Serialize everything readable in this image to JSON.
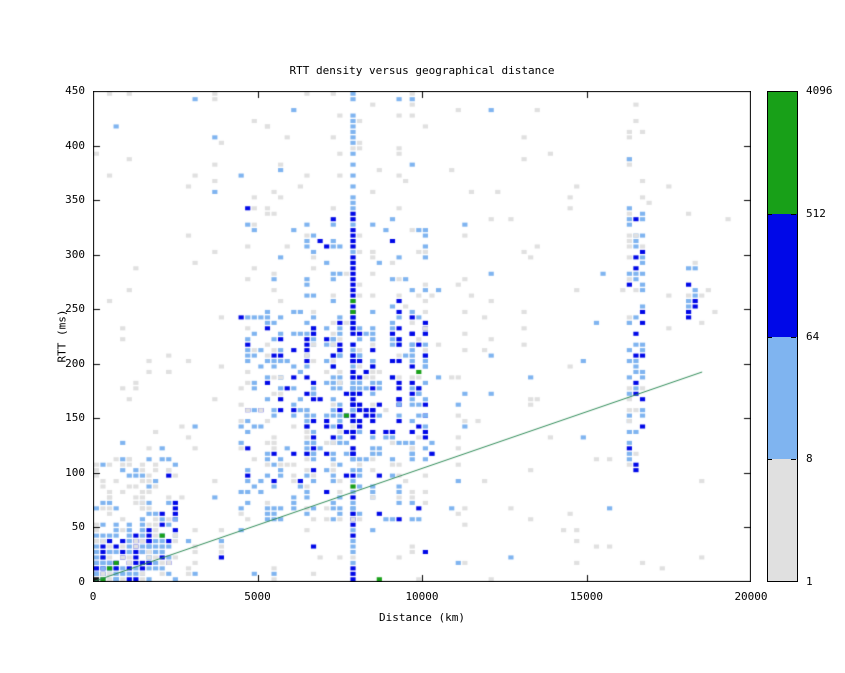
{
  "chart_data": {
    "type": "heatmap",
    "title": "RTT density versus geographical distance",
    "xlabel": "Distance (km)",
    "ylabel": "RTT (ms)",
    "xlim": [
      0,
      20000
    ],
    "ylim": [
      0,
      450
    ],
    "xticks": [
      0,
      5000,
      10000,
      15000,
      20000
    ],
    "yticks": [
      0,
      50,
      100,
      150,
      200,
      250,
      300,
      350,
      400,
      450
    ],
    "xtick_labels": [
      "0",
      "5000",
      "10000",
      "15000",
      "20000"
    ],
    "ytick_labels": [
      "0",
      "50",
      "100",
      "150",
      "200",
      "250",
      "300",
      "350",
      "400",
      "450"
    ],
    "grid": false,
    "legend_position": "right-colorbar",
    "bin_size": {
      "km": 200,
      "ms": 5
    },
    "color_scale": {
      "scale": "log",
      "thresholds": [
        1,
        8,
        64,
        512,
        4096
      ],
      "labels": [
        "1",
        "8",
        "64",
        "512",
        "4096"
      ],
      "levels": [
        {
          "name": "gray",
          "min": 1,
          "max": 8,
          "color": "#e0e0e0"
        },
        {
          "name": "lightblue",
          "min": 8,
          "max": 64,
          "color": "#7fb4f0"
        },
        {
          "name": "blue",
          "min": 64,
          "max": 512,
          "color": "#0008e8"
        },
        {
          "name": "green",
          "min": 512,
          "max": 4096,
          "color": "#18a018"
        }
      ]
    },
    "reference_line": {
      "from": [
        0,
        0
      ],
      "to": [
        18500,
        192
      ],
      "color": "#2e8b57"
    },
    "axis_color": "#000000",
    "background": "#ffffff",
    "seed": 7,
    "origin_cell": {
      "km": 100,
      "ms": 2,
      "color": "#151515"
    },
    "green_cells": [
      [
        300,
        3
      ],
      [
        500,
        12
      ],
      [
        700,
        16
      ],
      [
        2100,
        41
      ],
      [
        7700,
        152
      ],
      [
        7900,
        87
      ],
      [
        7900,
        247
      ],
      [
        7900,
        257
      ],
      [
        8700,
        2
      ],
      [
        9900,
        190
      ]
    ],
    "density_regions": [
      {
        "x": [
          0,
          800
        ],
        "y": [
          0,
          25
        ],
        "p": 0.97,
        "w": {
          "blue": 0.6,
          "lightblue": 0.25,
          "gray": 0.15
        },
        "noband": true
      },
      {
        "x": [
          0,
          1800
        ],
        "y": [
          0,
          45
        ],
        "p": 0.8,
        "w": {
          "blue": 0.4,
          "lightblue": 0.4,
          "gray": 0.2
        },
        "noband": true
      },
      {
        "x": [
          1400,
          2600
        ],
        "y": [
          15,
          75
        ],
        "p": 0.65,
        "w": {
          "blue": 0.3,
          "lightblue": 0.45,
          "gray": 0.25
        },
        "noband": true
      },
      {
        "x": [
          0,
          2600
        ],
        "y": [
          0,
          115
        ],
        "p": 0.3,
        "w": {
          "lightblue": 0.45,
          "gray": 0.55
        },
        "noband": true
      },
      {
        "x": [
          0,
          2400
        ],
        "y": [
          60,
          205
        ],
        "p": 0.14,
        "w": {
          "gray": 0.65,
          "lightblue": 0.3,
          "blue": 0.05
        },
        "noband": false
      },
      {
        "x": [
          0,
          2600
        ],
        "y": [
          200,
          450
        ],
        "p": 0.05,
        "w": {
          "gray": 0.95,
          "lightblue": 0.05
        },
        "noband": false
      },
      {
        "x": [
          2600,
          4400
        ],
        "y": [
          0,
          450
        ],
        "p": 0.05,
        "w": {
          "gray": 0.9,
          "lightblue": 0.1
        },
        "noband": false
      },
      {
        "x": [
          2600,
          4400
        ],
        "y": [
          0,
          80
        ],
        "p": 0.1,
        "w": {
          "gray": 0.65,
          "lightblue": 0.3,
          "blue": 0.05
        },
        "noband": false
      },
      {
        "x": [
          4400,
          10600
        ],
        "y": [
          55,
          250
        ],
        "p": 0.5,
        "w": {
          "lightblue": 0.55,
          "gray": 0.27,
          "blue": 0.18
        },
        "noband": false
      },
      {
        "x": [
          5600,
          10400
        ],
        "y": [
          115,
          235
        ],
        "p": 0.38,
        "w": {
          "blue": 0.5,
          "lightblue": 0.4,
          "gray": 0.1
        },
        "noband": false
      },
      {
        "x": [
          4400,
          10600
        ],
        "y": [
          250,
          345
        ],
        "p": 0.2,
        "w": {
          "lightblue": 0.4,
          "gray": 0.5,
          "blue": 0.1
        },
        "noband": false
      },
      {
        "x": [
          4400,
          10600
        ],
        "y": [
          345,
          450
        ],
        "p": 0.09,
        "w": {
          "gray": 0.8,
          "lightblue": 0.2
        },
        "noband": false
      },
      {
        "x": [
          4400,
          10600
        ],
        "y": [
          0,
          55
        ],
        "p": 0.12,
        "w": {
          "gray": 0.55,
          "lightblue": 0.3,
          "blue": 0.15
        },
        "noband": false
      },
      {
        "x": [
          10600,
          15800
        ],
        "y": [
          0,
          450
        ],
        "p": 0.04,
        "w": {
          "gray": 0.85,
          "lightblue": 0.15
        },
        "noband": false
      },
      {
        "x": [
          10600,
          12400
        ],
        "y": [
          60,
          300
        ],
        "p": 0.09,
        "w": {
          "gray": 0.55,
          "lightblue": 0.4,
          "blue": 0.05
        },
        "noband": false
      },
      {
        "x": [
          15800,
          19200
        ],
        "y": [
          0,
          450
        ],
        "p": 0.03,
        "w": {
          "gray": 0.9,
          "lightblue": 0.1
        },
        "noband": false
      },
      {
        "x": [
          16200,
          16800
        ],
        "y": [
          100,
          345
        ],
        "p": 0.5,
        "w": {
          "lightblue": 0.55,
          "blue": 0.22,
          "gray": 0.23
        },
        "noband": true
      },
      {
        "x": [
          16200,
          16800
        ],
        "y": [
          345,
          440
        ],
        "p": 0.12,
        "w": {
          "gray": 0.8,
          "lightblue": 0.2
        },
        "noband": true
      },
      {
        "x": [
          17900,
          18300
        ],
        "y": [
          235,
          295
        ],
        "p": 0.5,
        "w": {
          "lightblue": 0.6,
          "blue": 0.25,
          "gray": 0.15
        },
        "noband": true
      },
      {
        "x": [
          7800,
          8000
        ],
        "y": [
          0,
          90
        ],
        "p": 0.92,
        "w": {
          "blue": 0.6,
          "lightblue": 0.28,
          "gray": 0.12
        },
        "noband": true
      },
      {
        "x": [
          7800,
          8000
        ],
        "y": [
          90,
          200
        ],
        "p": 0.85,
        "w": {
          "blue": 0.5,
          "lightblue": 0.45,
          "gray": 0.05
        },
        "noband": true
      },
      {
        "x": [
          7800,
          8000
        ],
        "y": [
          200,
          345
        ],
        "p": 0.92,
        "w": {
          "blue": 0.8,
          "lightblue": 0.2
        },
        "noband": true
      },
      {
        "x": [
          7800,
          8000
        ],
        "y": [
          345,
          432
        ],
        "p": 0.85,
        "w": {
          "lightblue": 0.85,
          "gray": 0.15
        },
        "noband": true
      },
      {
        "x": [
          7800,
          8000
        ],
        "y": [
          432,
          450
        ],
        "p": 0.5,
        "w": {
          "lightblue": 0.5,
          "gray": 0.5
        },
        "noband": true
      },
      {
        "x": [
          0,
          19400
        ],
        "y": [
          0,
          450
        ],
        "p": 0.012,
        "w": {
          "gray": 1.0
        },
        "noband": false
      }
    ]
  }
}
